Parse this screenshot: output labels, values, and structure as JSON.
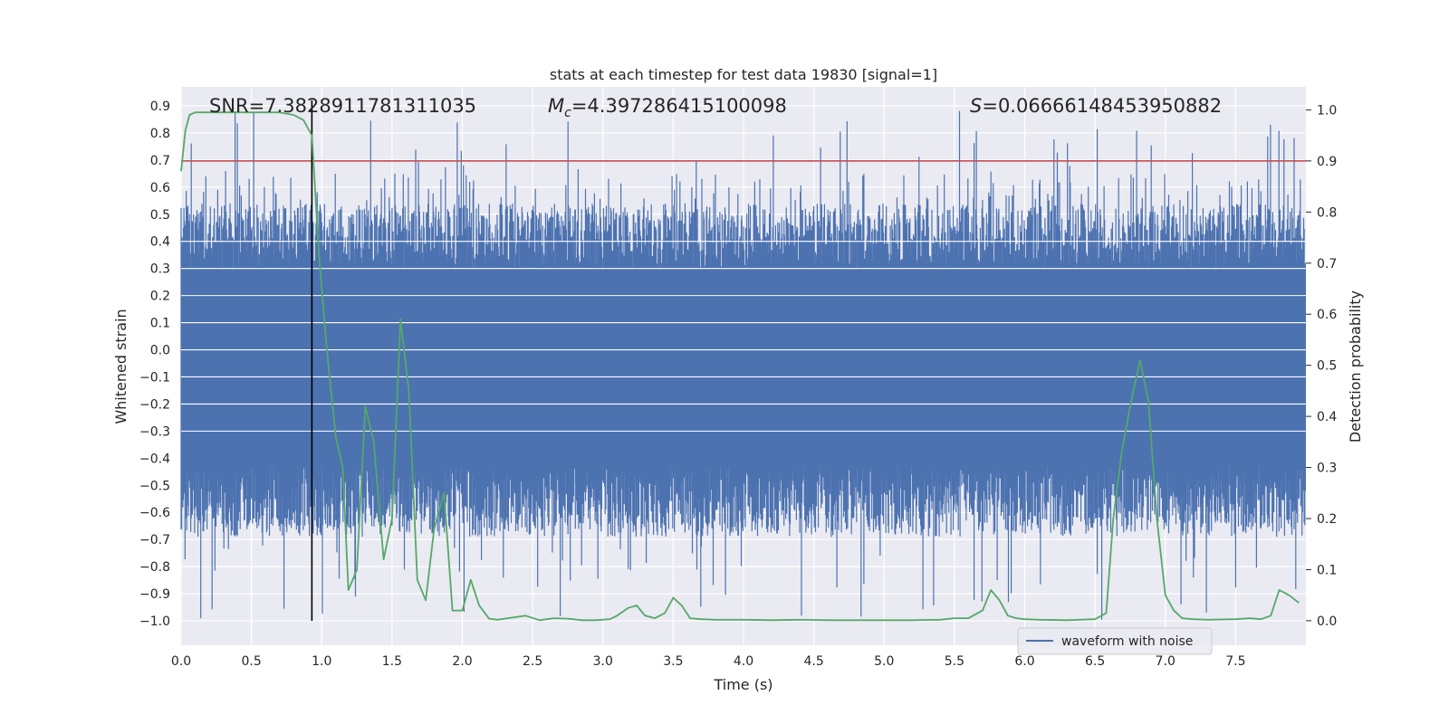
{
  "chart_data": {
    "type": "line",
    "title": "stats at each timestep for test data 19830 [signal=1]",
    "xlabel": "Time (s)",
    "ylabel_left": "Whitened strain",
    "ylabel_right": "Detection probability",
    "xlim": [
      0.0,
      8.0
    ],
    "ylim_left": [
      -1.09,
      0.97
    ],
    "ylim_right": [
      -0.048,
      1.045
    ],
    "x_ticks": [
      0.0,
      0.5,
      1.0,
      1.5,
      2.0,
      2.5,
      3.0,
      3.5,
      4.0,
      4.5,
      5.0,
      5.5,
      6.0,
      6.5,
      7.0,
      7.5
    ],
    "x_tick_labels": [
      "0.0",
      "0.5",
      "1.0",
      "1.5",
      "2.0",
      "2.5",
      "3.0",
      "3.5",
      "4.0",
      "4.5",
      "5.0",
      "5.5",
      "6.0",
      "6.5",
      "7.0",
      "7.5"
    ],
    "y_left_ticks": [
      0.9,
      0.8,
      0.7,
      0.6,
      0.5,
      0.4,
      0.3,
      0.2,
      0.1,
      0.0,
      -0.1,
      -0.2,
      -0.3,
      -0.4,
      -0.5,
      -0.6,
      -0.7,
      -0.8,
      -0.9,
      -1.0
    ],
    "y_left_tick_labels": [
      "0.9",
      "0.8",
      "0.7",
      "0.6",
      "0.5",
      "0.4",
      "0.3",
      "0.2",
      "0.1",
      "0.0",
      "−0.1",
      "−0.2",
      "−0.3",
      "−0.4",
      "−0.5",
      "−0.6",
      "−0.7",
      "−0.8",
      "−0.9",
      "−1.0"
    ],
    "y_right_ticks": [
      1.0,
      0.9,
      0.8,
      0.7,
      0.6,
      0.5,
      0.4,
      0.3,
      0.2,
      0.1,
      0.0
    ],
    "y_right_tick_labels": [
      "1.0",
      "0.9",
      "0.8",
      "0.7",
      "0.6",
      "0.5",
      "0.4",
      "0.3",
      "0.2",
      "0.1",
      "0.0"
    ],
    "annotations": {
      "snr": "SNR=7.3828911781311035",
      "mc_symbol": "M",
      "mc_sub": "c",
      "mc_value": "=4.397286415100098",
      "s_symbol": "S",
      "s_value": "=0.06666148453950882"
    },
    "legend": {
      "label": "waveform with noise",
      "placement": "lower-right"
    },
    "grid": true,
    "threshold_line": {
      "y_right": 0.9,
      "color": "#c44e52"
    },
    "vertical_marker": {
      "x": 0.93,
      "y_from": -1.0,
      "y_to": 0.92,
      "color": "#000000"
    },
    "waveform": {
      "color": "#4c72b0",
      "sample_interval_s": 0.004,
      "core_amplitude": 0.3,
      "peak_max": 0.89,
      "trough_min": -1.0
    },
    "probability_series": {
      "name": "detection probability",
      "color": "#55a868",
      "x": [
        0.0,
        0.03,
        0.06,
        0.1,
        0.2,
        0.3,
        0.4,
        0.5,
        0.6,
        0.7,
        0.8,
        0.87,
        0.93,
        0.98,
        1.03,
        1.07,
        1.1,
        1.15,
        1.19,
        1.25,
        1.31,
        1.37,
        1.44,
        1.5,
        1.56,
        1.62,
        1.68,
        1.74,
        1.8,
        1.87,
        1.93,
        2.0,
        2.06,
        2.12,
        2.19,
        2.25,
        2.35,
        2.45,
        2.55,
        2.65,
        2.75,
        2.85,
        2.95,
        3.05,
        3.1,
        3.18,
        3.24,
        3.3,
        3.37,
        3.44,
        3.5,
        3.56,
        3.62,
        3.7,
        3.8,
        3.9,
        4.0,
        4.2,
        4.4,
        4.6,
        4.8,
        5.0,
        5.2,
        5.4,
        5.5,
        5.6,
        5.7,
        5.76,
        5.82,
        5.88,
        5.94,
        6.0,
        6.1,
        6.3,
        6.5,
        6.58,
        6.63,
        6.69,
        6.75,
        6.82,
        6.88,
        6.94,
        7.0,
        7.06,
        7.12,
        7.19,
        7.3,
        7.5,
        7.6,
        7.68,
        7.75,
        7.81,
        7.88,
        7.95
      ],
      "values": [
        0.88,
        0.96,
        0.99,
        0.995,
        0.995,
        0.995,
        0.995,
        0.995,
        0.995,
        0.995,
        0.99,
        0.98,
        0.95,
        0.72,
        0.55,
        0.44,
        0.36,
        0.3,
        0.06,
        0.1,
        0.42,
        0.35,
        0.12,
        0.2,
        0.59,
        0.45,
        0.08,
        0.04,
        0.18,
        0.25,
        0.02,
        0.02,
        0.08,
        0.03,
        0.004,
        0.002,
        0.006,
        0.01,
        0.001,
        0.005,
        0.004,
        0.001,
        0.001,
        0.003,
        0.01,
        0.025,
        0.03,
        0.01,
        0.005,
        0.015,
        0.045,
        0.03,
        0.005,
        0.003,
        0.002,
        0.002,
        0.002,
        0.001,
        0.002,
        0.001,
        0.001,
        0.001,
        0.001,
        0.002,
        0.005,
        0.005,
        0.02,
        0.06,
        0.04,
        0.01,
        0.005,
        0.003,
        0.002,
        0.001,
        0.003,
        0.015,
        0.2,
        0.33,
        0.42,
        0.51,
        0.43,
        0.2,
        0.05,
        0.02,
        0.005,
        0.003,
        0.002,
        0.003,
        0.005,
        0.003,
        0.01,
        0.06,
        0.05,
        0.035
      ]
    }
  }
}
